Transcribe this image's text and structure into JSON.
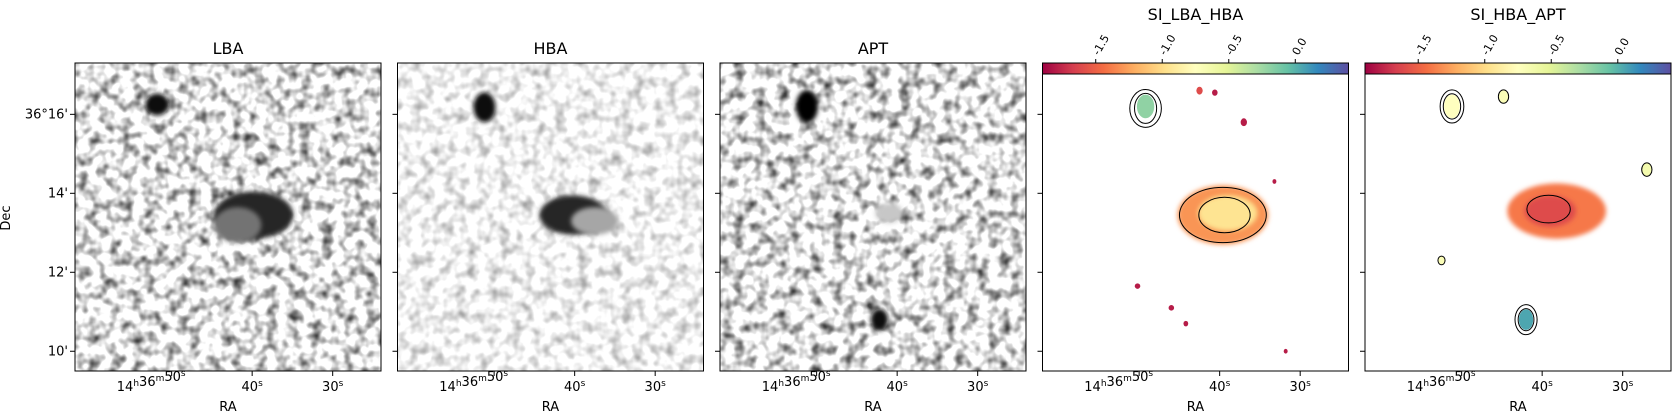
{
  "chart_data": {
    "type": "image",
    "ylabel": "Dec",
    "yticks": [
      "36°16'",
      "14'",
      "12'",
      "10'"
    ],
    "xticks": [
      {
        "h": "14",
        "m": "36",
        "s": "50"
      },
      {
        "s": "40"
      },
      {
        "s": "30"
      }
    ],
    "colors": {
      "frame": "#000000",
      "contour": "#000000",
      "colormap": "Spectral",
      "colormap_stops": [
        "#9e0142",
        "#d53e4f",
        "#f46d43",
        "#fdae61",
        "#fee08b",
        "#ffffbf",
        "#e6f598",
        "#abdda4",
        "#66c2a5",
        "#3288bd",
        "#5e4fa2"
      ]
    },
    "panels": [
      {
        "title": "LBA",
        "xlabel": "RA",
        "kind": "grayscale",
        "show_ylabel": true,
        "show_yticklabels": true,
        "sources": [
          {
            "ra": 51.8,
            "dec": 16.25,
            "a": 0.3,
            "b": 0.28,
            "level": 0.95
          },
          {
            "ra": 39.8,
            "dec": 13.45,
            "a": 1.0,
            "b": 0.6,
            "level": 0.85
          },
          {
            "ra": 41.8,
            "dec": 13.2,
            "a": 0.6,
            "b": 0.45,
            "level": 0.55
          }
        ]
      },
      {
        "title": "HBA",
        "xlabel": "RA",
        "kind": "grayscale",
        "show_ylabel": false,
        "show_yticklabels": false,
        "sources": [
          {
            "ra": 51.2,
            "dec": 16.18,
            "a": 0.28,
            "b": 0.38,
            "level": 0.95
          },
          {
            "ra": 40.2,
            "dec": 13.45,
            "a": 0.85,
            "b": 0.5,
            "level": 0.85
          },
          {
            "ra": 37.5,
            "dec": 13.3,
            "a": 0.6,
            "b": 0.35,
            "level": 0.35
          }
        ]
      },
      {
        "title": "APT",
        "xlabel": "RA",
        "kind": "grayscale",
        "show_ylabel": false,
        "show_yticklabels": false,
        "sources": [
          {
            "ra": 51.2,
            "dec": 16.2,
            "a": 0.28,
            "b": 0.42,
            "level": 0.98
          },
          {
            "ra": 42.2,
            "dec": 10.8,
            "a": 0.22,
            "b": 0.28,
            "level": 0.95
          },
          {
            "ra": 41.0,
            "dec": 13.5,
            "a": 0.35,
            "b": 0.25,
            "level": 0.22
          }
        ]
      },
      {
        "title": "SI_LBA_HBA",
        "xlabel": "RA",
        "kind": "spectral_index",
        "show_ylabel": false,
        "show_yticklabels": false,
        "colorbar": {
          "min": -1.9,
          "max": 0.4,
          "ticks": [
            "-1.5",
            "-1.0",
            "-0.5",
            "0.0"
          ]
        },
        "regions": [
          {
            "ra": 39.6,
            "dec": 13.45,
            "a": 1.15,
            "b": 0.75,
            "si": -1.3
          },
          {
            "ra": 39.0,
            "dec": 13.5,
            "a": 0.75,
            "b": 0.45,
            "si": -0.95
          },
          {
            "ra": 49.2,
            "dec": 16.2,
            "a": 0.22,
            "b": 0.3,
            "si": -0.2
          },
          {
            "ra": 42.5,
            "dec": 16.6,
            "a": 0.08,
            "b": 0.1,
            "si": -1.6
          },
          {
            "ra": 40.6,
            "dec": 16.55,
            "a": 0.07,
            "b": 0.08,
            "si": -1.8
          },
          {
            "ra": 37.0,
            "dec": 15.8,
            "a": 0.08,
            "b": 0.1,
            "si": -1.8
          },
          {
            "ra": 50.2,
            "dec": 11.65,
            "a": 0.07,
            "b": 0.07,
            "si": -1.8
          },
          {
            "ra": 46.0,
            "dec": 11.1,
            "a": 0.07,
            "b": 0.07,
            "si": -1.8
          },
          {
            "ra": 44.2,
            "dec": 10.7,
            "a": 0.06,
            "b": 0.07,
            "si": -1.8
          },
          {
            "ra": 33.2,
            "dec": 14.3,
            "a": 0.05,
            "b": 0.06,
            "si": -1.8
          },
          {
            "ra": 31.8,
            "dec": 10.0,
            "a": 0.05,
            "b": 0.06,
            "si": -1.8
          }
        ],
        "contours": [
          {
            "ra": 49.2,
            "dec": 16.15,
            "a": 0.28,
            "b": 0.38
          },
          {
            "ra": 49.2,
            "dec": 16.15,
            "a": 0.4,
            "b": 0.48
          },
          {
            "ra": 39.6,
            "dec": 13.45,
            "a": 1.1,
            "b": 0.7
          },
          {
            "ra": 39.4,
            "dec": 13.45,
            "a": 0.65,
            "b": 0.45
          }
        ]
      },
      {
        "title": "SI_HBA_APT",
        "xlabel": "RA",
        "kind": "spectral_index",
        "show_ylabel": false,
        "show_yticklabels": false,
        "colorbar": {
          "min": -1.9,
          "max": 0.4,
          "ticks": [
            "-1.5",
            "-1.0",
            "-0.5",
            "0.0"
          ]
        },
        "regions": [
          {
            "ra": 38.2,
            "dec": 13.55,
            "a": 1.25,
            "b": 0.7,
            "si": -1.4
          },
          {
            "ra": 39.0,
            "dec": 13.55,
            "a": 0.65,
            "b": 0.4,
            "si": -1.6
          },
          {
            "ra": 51.2,
            "dec": 16.2,
            "a": 0.2,
            "b": 0.3,
            "si": -0.75
          },
          {
            "ra": 42.0,
            "dec": 10.8,
            "a": 0.18,
            "b": 0.26,
            "si": 0.05
          },
          {
            "ra": 44.8,
            "dec": 16.45,
            "a": 0.12,
            "b": 0.16,
            "si": -0.7
          },
          {
            "ra": 27.0,
            "dec": 14.6,
            "a": 0.12,
            "b": 0.16,
            "si": -0.65
          },
          {
            "ra": 52.5,
            "dec": 12.3,
            "a": 0.08,
            "b": 0.1,
            "si": -0.7
          }
        ],
        "contours": [
          {
            "ra": 51.2,
            "dec": 16.2,
            "a": 0.22,
            "b": 0.32
          },
          {
            "ra": 51.2,
            "dec": 16.2,
            "a": 0.3,
            "b": 0.42
          },
          {
            "ra": 42.0,
            "dec": 10.8,
            "a": 0.2,
            "b": 0.28
          },
          {
            "ra": 42.0,
            "dec": 10.8,
            "a": 0.28,
            "b": 0.38
          },
          {
            "ra": 39.2,
            "dec": 13.6,
            "a": 0.55,
            "b": 0.35
          },
          {
            "ra": 44.8,
            "dec": 16.45,
            "a": 0.13,
            "b": 0.17
          },
          {
            "ra": 27.0,
            "dec": 14.6,
            "a": 0.13,
            "b": 0.17
          },
          {
            "ra": 52.5,
            "dec": 12.3,
            "a": 0.09,
            "b": 0.11
          }
        ]
      }
    ]
  }
}
